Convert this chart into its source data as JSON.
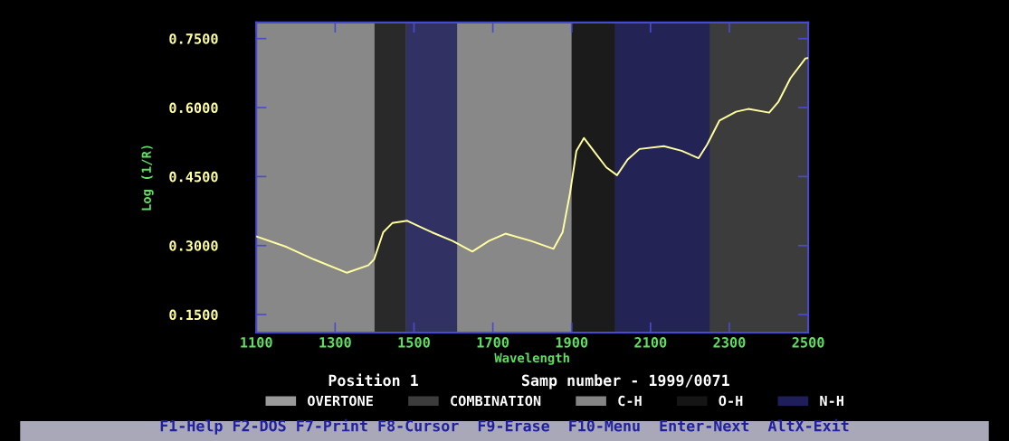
{
  "chart_data": {
    "type": "line",
    "xlabel": "Wavelength",
    "ylabel": "Log (1/R)",
    "x": [
      1100,
      1177,
      1246,
      1330,
      1384,
      1399,
      1422,
      1445,
      1483,
      1545,
      1598,
      1648,
      1690,
      1732,
      1797,
      1854,
      1877,
      1896,
      1912,
      1931,
      1961,
      1988,
      2015,
      2042,
      2072,
      2134,
      2179,
      2222,
      2244,
      2275,
      2317,
      2348,
      2401,
      2424,
      2455,
      2493,
      2500
    ],
    "series": [
      {
        "color": "#ffffa0",
        "values": [
          0.32,
          0.297,
          0.27,
          0.241,
          0.257,
          0.27,
          0.329,
          0.349,
          0.354,
          0.329,
          0.31,
          0.287,
          0.31,
          0.326,
          0.31,
          0.293,
          0.329,
          0.415,
          0.506,
          0.534,
          0.5,
          0.47,
          0.453,
          0.487,
          0.51,
          0.516,
          0.506,
          0.49,
          0.52,
          0.572,
          0.591,
          0.597,
          0.589,
          0.612,
          0.664,
          0.707,
          0.708
        ]
      }
    ],
    "xlim": [
      1100,
      2500
    ],
    "ylim": [
      0.111,
      0.785
    ],
    "xticks": [
      1100,
      1300,
      1500,
      1700,
      1900,
      2100,
      2300,
      2500
    ],
    "yticks": [
      {
        "value": 0.15,
        "label": "0.1500"
      },
      {
        "value": 0.3,
        "label": "0.3000"
      },
      {
        "value": 0.45,
        "label": "0.4500"
      },
      {
        "value": 0.6,
        "label": "0.6000"
      },
      {
        "value": 0.75,
        "label": "0.7500"
      }
    ],
    "bands": [
      {
        "axis": "x",
        "from": 1100,
        "to": 1900,
        "label": "OVERTONE",
        "color": "#9a9a9a"
      },
      {
        "axis": "x",
        "from": 1900,
        "to": 2500,
        "label": "COMBINATION",
        "color": "#3c3c3c"
      },
      {
        "axis": "x",
        "from": 1100,
        "to": 1400,
        "label": "C-H",
        "color": "#858585"
      },
      {
        "axis": "x",
        "from": 1400,
        "to": 1480,
        "label": "O-H",
        "color": "#151515"
      },
      {
        "axis": "x",
        "from": 1480,
        "to": 1610,
        "label": "N-H",
        "color": "#1e1e5a"
      },
      {
        "axis": "x",
        "from": 1610,
        "to": 1900,
        "color": "#858585"
      },
      {
        "axis": "x",
        "from": 1900,
        "to": 2010,
        "color": "#151515"
      },
      {
        "axis": "x",
        "from": 2010,
        "to": 2250,
        "color": "#1e1e5a"
      }
    ],
    "legend": "bottom",
    "grid": false,
    "marker": "none",
    "line_style": "solid",
    "annotations": [
      "Position 1",
      "Samp number - 1999/0071",
      "F1-Help F2-DOS F7-Print F8-Cursor  F9-Erase  F10-Menu  Enter-Next  AltX-Exit"
    ]
  }
}
